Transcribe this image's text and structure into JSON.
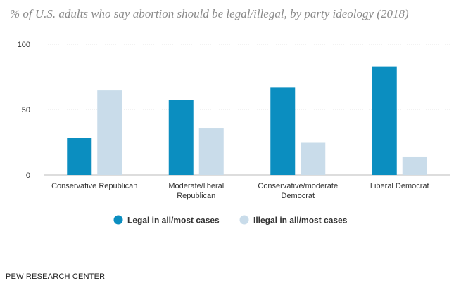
{
  "chart_data": {
    "type": "bar",
    "title": "% of U.S. adults who say abortion should be legal/illegal, by party ideology (2018)",
    "categories": [
      [
        "Conservative Republican"
      ],
      [
        "Moderate/liberal",
        "Republican"
      ],
      [
        "Conservative/moderate",
        "Democrat"
      ],
      [
        "Liberal Democrat"
      ]
    ],
    "series": [
      {
        "name": "Legal in all/most cases",
        "color": "#0b8ec0",
        "values": [
          28,
          57,
          67,
          83
        ]
      },
      {
        "name": "Illegal in all/most cases",
        "color": "#c9dcea",
        "values": [
          65,
          36,
          25,
          14
        ]
      }
    ],
    "ylim": [
      0,
      100
    ],
    "yticks": [
      0,
      50,
      100
    ],
    "xlabel": "",
    "ylabel": "",
    "legend": "bottom-center",
    "grid": false
  },
  "source": "PEW RESEARCH CENTER"
}
